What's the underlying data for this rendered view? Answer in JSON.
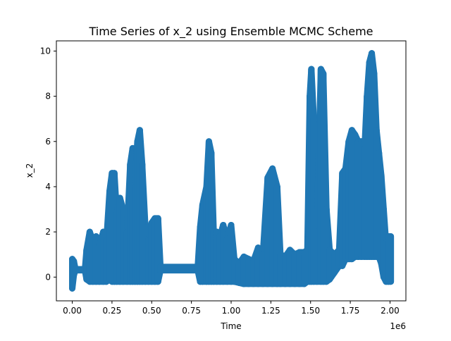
{
  "chart_data": {
    "type": "scatter",
    "title": "Time Series of x_2 using Ensemble MCMC Scheme",
    "xlabel": "Time",
    "ylabel": "x_2",
    "x_offset_text": "1e6",
    "x_scale": 1000000,
    "xlim": [
      -0.1,
      2.1
    ],
    "ylim": [
      -1.05,
      10.45
    ],
    "xticks": [
      0.0,
      0.25,
      0.5,
      0.75,
      1.0,
      1.25,
      1.5,
      1.75,
      2.0
    ],
    "xtick_labels": [
      "0.00",
      "0.25",
      "0.50",
      "0.75",
      "1.00",
      "1.25",
      "1.50",
      "1.75",
      "2.00"
    ],
    "yticks": [
      0,
      2,
      4,
      6,
      8,
      10
    ],
    "ytick_labels": [
      "0",
      "2",
      "4",
      "6",
      "8",
      "10"
    ],
    "grid": false,
    "marker_color": "#1f77b4",
    "series": [
      {
        "envelope": [
          {
            "x": 0.0,
            "min": -0.5,
            "max": 0.8
          },
          {
            "x": 0.01,
            "min": 0.1,
            "max": 0.7
          },
          {
            "x": 0.02,
            "min": 0.3,
            "max": 0.35
          },
          {
            "x": 0.08,
            "min": 0.3,
            "max": 0.35
          },
          {
            "x": 0.09,
            "min": -0.1,
            "max": 1.2
          },
          {
            "x": 0.11,
            "min": -0.2,
            "max": 2.0
          },
          {
            "x": 0.13,
            "min": -0.2,
            "max": 1.6
          },
          {
            "x": 0.15,
            "min": -0.2,
            "max": 1.8
          },
          {
            "x": 0.17,
            "min": -0.2,
            "max": 1.4
          },
          {
            "x": 0.195,
            "min": -0.2,
            "max": 2.0
          },
          {
            "x": 0.215,
            "min": -0.2,
            "max": 1.6
          },
          {
            "x": 0.235,
            "min": -0.1,
            "max": 3.8
          },
          {
            "x": 0.25,
            "min": -0.2,
            "max": 4.6
          },
          {
            "x": 0.265,
            "min": -0.2,
            "max": 4.6
          },
          {
            "x": 0.28,
            "min": -0.2,
            "max": 2.8
          },
          {
            "x": 0.3,
            "min": -0.2,
            "max": 3.5
          },
          {
            "x": 0.32,
            "min": -0.2,
            "max": 3.0
          },
          {
            "x": 0.345,
            "min": -0.2,
            "max": 2.0
          },
          {
            "x": 0.365,
            "min": -0.2,
            "max": 5.0
          },
          {
            "x": 0.38,
            "min": -0.2,
            "max": 5.7
          },
          {
            "x": 0.395,
            "min": -0.2,
            "max": 4.0
          },
          {
            "x": 0.41,
            "min": -0.2,
            "max": 6.0
          },
          {
            "x": 0.425,
            "min": -0.2,
            "max": 6.5
          },
          {
            "x": 0.44,
            "min": -0.2,
            "max": 5.0
          },
          {
            "x": 0.46,
            "min": -0.2,
            "max": 2.2
          },
          {
            "x": 0.48,
            "min": -0.2,
            "max": 1.6
          },
          {
            "x": 0.5,
            "min": -0.2,
            "max": 2.4
          },
          {
            "x": 0.52,
            "min": -0.2,
            "max": 2.6
          },
          {
            "x": 0.54,
            "min": -0.2,
            "max": 2.6
          },
          {
            "x": 0.555,
            "min": 0.3,
            "max": 0.45
          },
          {
            "x": 0.79,
            "min": 0.3,
            "max": 0.45
          },
          {
            "x": 0.805,
            "min": -0.2,
            "max": 2.2
          },
          {
            "x": 0.82,
            "min": -0.2,
            "max": 3.2
          },
          {
            "x": 0.845,
            "min": -0.2,
            "max": 4.0
          },
          {
            "x": 0.86,
            "min": -0.2,
            "max": 6.0
          },
          {
            "x": 0.875,
            "min": -0.2,
            "max": 5.5
          },
          {
            "x": 0.89,
            "min": -0.2,
            "max": 2.0
          },
          {
            "x": 0.91,
            "min": -0.2,
            "max": 2.0
          },
          {
            "x": 0.93,
            "min": -0.2,
            "max": 1.8
          },
          {
            "x": 0.95,
            "min": -0.2,
            "max": 2.3
          },
          {
            "x": 0.975,
            "min": -0.2,
            "max": 1.7
          },
          {
            "x": 1.0,
            "min": -0.2,
            "max": 2.3
          },
          {
            "x": 1.02,
            "min": -0.2,
            "max": 0.8
          },
          {
            "x": 1.05,
            "min": -0.25,
            "max": 0.6
          },
          {
            "x": 1.08,
            "min": -0.3,
            "max": 0.9
          },
          {
            "x": 1.11,
            "min": -0.3,
            "max": 0.8
          },
          {
            "x": 1.14,
            "min": -0.3,
            "max": 0.7
          },
          {
            "x": 1.17,
            "min": -0.3,
            "max": 1.3
          },
          {
            "x": 1.2,
            "min": -0.3,
            "max": 1.0
          },
          {
            "x": 1.23,
            "min": -0.3,
            "max": 4.4
          },
          {
            "x": 1.26,
            "min": -0.3,
            "max": 4.8
          },
          {
            "x": 1.29,
            "min": -0.3,
            "max": 4.0
          },
          {
            "x": 1.31,
            "min": -0.3,
            "max": 1.0
          },
          {
            "x": 1.34,
            "min": -0.3,
            "max": 0.9
          },
          {
            "x": 1.37,
            "min": -0.3,
            "max": 1.2
          },
          {
            "x": 1.4,
            "min": -0.3,
            "max": 1.0
          },
          {
            "x": 1.43,
            "min": -0.3,
            "max": 1.1
          },
          {
            "x": 1.46,
            "min": -0.3,
            "max": 1.1
          },
          {
            "x": 1.48,
            "min": -0.2,
            "max": 1.2
          },
          {
            "x": 1.495,
            "min": -0.2,
            "max": 8.0
          },
          {
            "x": 1.505,
            "min": -0.2,
            "max": 9.2
          },
          {
            "x": 1.52,
            "min": -0.2,
            "max": 7.0
          },
          {
            "x": 1.54,
            "min": -0.2,
            "max": 2.0
          },
          {
            "x": 1.565,
            "min": -0.2,
            "max": 9.2
          },
          {
            "x": 1.58,
            "min": -0.2,
            "max": 9.0
          },
          {
            "x": 1.6,
            "min": -0.2,
            "max": 3.0
          },
          {
            "x": 1.62,
            "min": -0.1,
            "max": 1.2
          },
          {
            "x": 1.65,
            "min": 0.2,
            "max": 1.0
          },
          {
            "x": 1.68,
            "min": 0.5,
            "max": 1.2
          },
          {
            "x": 1.7,
            "min": 0.5,
            "max": 4.6
          },
          {
            "x": 1.72,
            "min": 0.8,
            "max": 4.8
          },
          {
            "x": 1.74,
            "min": 0.8,
            "max": 6.0
          },
          {
            "x": 1.76,
            "min": 0.8,
            "max": 6.5
          },
          {
            "x": 1.78,
            "min": 0.9,
            "max": 6.3
          },
          {
            "x": 1.8,
            "min": 0.9,
            "max": 6.0
          },
          {
            "x": 1.82,
            "min": 0.9,
            "max": 6.0
          },
          {
            "x": 1.84,
            "min": 0.9,
            "max": 5.7
          },
          {
            "x": 1.855,
            "min": 0.9,
            "max": 8.0
          },
          {
            "x": 1.87,
            "min": 0.9,
            "max": 9.5
          },
          {
            "x": 1.885,
            "min": 0.9,
            "max": 9.9
          },
          {
            "x": 1.9,
            "min": 0.9,
            "max": 9.0
          },
          {
            "x": 1.915,
            "min": 0.9,
            "max": 6.5
          },
          {
            "x": 1.93,
            "min": 0.9,
            "max": 5.5
          },
          {
            "x": 1.945,
            "min": 0.6,
            "max": 4.5
          },
          {
            "x": 1.96,
            "min": 0.0,
            "max": 3.0
          },
          {
            "x": 1.975,
            "min": -0.2,
            "max": 1.5
          },
          {
            "x": 1.99,
            "min": -0.2,
            "max": 1.8
          },
          {
            "x": 2.005,
            "min": -0.2,
            "max": 1.8
          }
        ]
      }
    ]
  }
}
